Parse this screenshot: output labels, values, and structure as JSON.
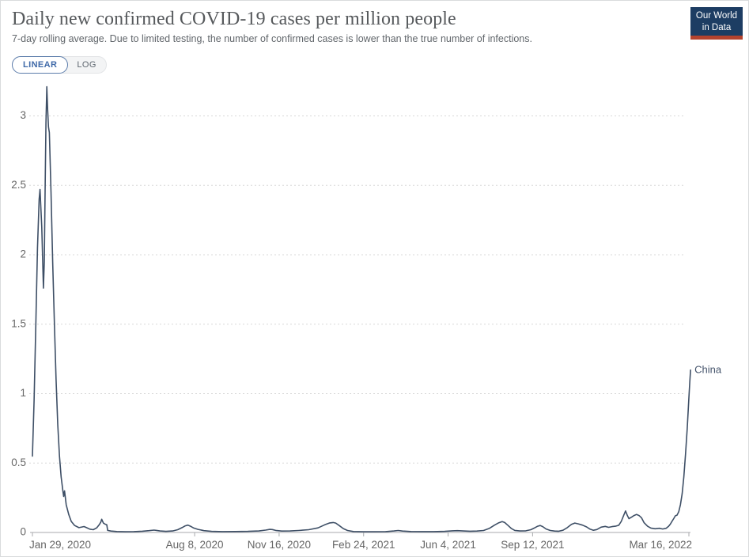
{
  "header": {
    "title": "Daily new confirmed COVID-19 cases per million people",
    "subtitle": "7-day rolling average. Due to limited testing, the number of confirmed cases is lower than the true number of infections."
  },
  "logo": {
    "line1": "Our World",
    "line2": "in Data"
  },
  "controls": {
    "linear_label": "LINEAR",
    "log_label": "LOG"
  },
  "colors": {
    "line": "#3e4f66",
    "entity_label": "#44536b",
    "axis": "#a8aaad",
    "grid": "#d8d8d8",
    "tick_text": "#666666",
    "logo_bg": "#1d3d63",
    "logo_bar": "#b5432e",
    "toggle_active": "#3f69a8"
  },
  "chart_data": {
    "type": "line",
    "title": "Daily new confirmed COVID-19 cases per million people",
    "subtitle": "7-day rolling average. Due to limited testing, the number of confirmed cases is lower than the true number of infections.",
    "xlabel": "",
    "ylabel": "",
    "ylim": [
      0,
      3.3
    ],
    "grid": "horizontal-dashed",
    "legend_position": "end-of-line-label",
    "x_ticks": [
      {
        "label": "Jan 29, 2020",
        "date": "2020-01-29"
      },
      {
        "label": "Aug 8, 2020",
        "date": "2020-08-08"
      },
      {
        "label": "Nov 16, 2020",
        "date": "2020-11-16"
      },
      {
        "label": "Feb 24, 2021",
        "date": "2021-02-24"
      },
      {
        "label": "Jun 4, 2021",
        "date": "2021-06-04"
      },
      {
        "label": "Sep 12, 2021",
        "date": "2021-09-12"
      },
      {
        "label": "Mar 16, 2022",
        "date": "2022-03-16"
      }
    ],
    "y_ticks": [
      {
        "value": 0,
        "label": "0"
      },
      {
        "value": 0.5,
        "label": "0.5"
      },
      {
        "value": 1,
        "label": "1"
      },
      {
        "value": 1.5,
        "label": "1.5"
      },
      {
        "value": 2,
        "label": "2"
      },
      {
        "value": 2.5,
        "label": "2.5"
      },
      {
        "value": 3,
        "label": "3"
      }
    ],
    "series": [
      {
        "name": "China",
        "color": "#3e4f66",
        "points": [
          [
            "2020-01-29",
            0.55
          ],
          [
            "2020-01-31",
            0.95
          ],
          [
            "2020-02-02",
            1.5
          ],
          [
            "2020-02-04",
            2.05
          ],
          [
            "2020-02-06",
            2.4
          ],
          [
            "2020-02-07",
            2.47
          ],
          [
            "2020-02-09",
            2.2
          ],
          [
            "2020-02-11",
            1.76
          ],
          [
            "2020-02-12",
            1.95
          ],
          [
            "2020-02-13",
            2.45
          ],
          [
            "2020-02-14",
            2.95
          ],
          [
            "2020-02-15",
            3.21
          ],
          [
            "2020-02-16",
            3.05
          ],
          [
            "2020-02-17",
            2.92
          ],
          [
            "2020-02-18",
            2.88
          ],
          [
            "2020-02-20",
            2.45
          ],
          [
            "2020-02-22",
            1.95
          ],
          [
            "2020-02-24",
            1.5
          ],
          [
            "2020-02-26",
            1.1
          ],
          [
            "2020-02-28",
            0.78
          ],
          [
            "2020-03-01",
            0.55
          ],
          [
            "2020-03-03",
            0.4
          ],
          [
            "2020-03-05",
            0.3
          ],
          [
            "2020-03-06",
            0.26
          ],
          [
            "2020-03-07",
            0.3
          ],
          [
            "2020-03-09",
            0.2
          ],
          [
            "2020-03-12",
            0.13
          ],
          [
            "2020-03-15",
            0.08
          ],
          [
            "2020-03-19",
            0.05
          ],
          [
            "2020-03-24",
            0.035
          ],
          [
            "2020-03-28",
            0.04
          ],
          [
            "2020-03-30",
            0.043
          ],
          [
            "2020-04-02",
            0.035
          ],
          [
            "2020-04-06",
            0.024
          ],
          [
            "2020-04-10",
            0.02
          ],
          [
            "2020-04-14",
            0.033
          ],
          [
            "2020-04-17",
            0.055
          ],
          [
            "2020-04-19",
            0.075
          ],
          [
            "2020-04-20",
            0.095
          ],
          [
            "2020-04-22",
            0.068
          ],
          [
            "2020-04-24",
            0.06
          ],
          [
            "2020-04-26",
            0.055
          ],
          [
            "2020-04-27",
            0.015
          ],
          [
            "2020-05-01",
            0.01
          ],
          [
            "2020-05-08",
            0.007
          ],
          [
            "2020-05-18",
            0.005
          ],
          [
            "2020-05-28",
            0.006
          ],
          [
            "2020-06-07",
            0.009
          ],
          [
            "2020-06-15",
            0.013
          ],
          [
            "2020-06-21",
            0.017
          ],
          [
            "2020-06-24",
            0.015
          ],
          [
            "2020-06-28",
            0.011
          ],
          [
            "2020-07-05",
            0.008
          ],
          [
            "2020-07-13",
            0.011
          ],
          [
            "2020-07-19",
            0.02
          ],
          [
            "2020-07-24",
            0.035
          ],
          [
            "2020-07-28",
            0.048
          ],
          [
            "2020-07-31",
            0.053
          ],
          [
            "2020-08-03",
            0.045
          ],
          [
            "2020-08-07",
            0.032
          ],
          [
            "2020-08-12",
            0.022
          ],
          [
            "2020-08-19",
            0.013
          ],
          [
            "2020-08-28",
            0.008
          ],
          [
            "2020-09-10",
            0.006
          ],
          [
            "2020-09-25",
            0.007
          ],
          [
            "2020-10-10",
            0.008
          ],
          [
            "2020-10-23",
            0.011
          ],
          [
            "2020-10-31",
            0.017
          ],
          [
            "2020-11-05",
            0.022
          ],
          [
            "2020-11-08",
            0.021
          ],
          [
            "2020-11-12",
            0.015
          ],
          [
            "2020-11-19",
            0.01
          ],
          [
            "2020-11-29",
            0.011
          ],
          [
            "2020-12-09",
            0.014
          ],
          [
            "2020-12-21",
            0.02
          ],
          [
            "2021-01-01",
            0.033
          ],
          [
            "2021-01-09",
            0.055
          ],
          [
            "2021-01-15",
            0.069
          ],
          [
            "2021-01-19",
            0.072
          ],
          [
            "2021-01-22",
            0.068
          ],
          [
            "2021-01-26",
            0.05
          ],
          [
            "2021-01-31",
            0.028
          ],
          [
            "2021-02-05",
            0.014
          ],
          [
            "2021-02-12",
            0.007
          ],
          [
            "2021-02-24",
            0.005
          ],
          [
            "2021-03-09",
            0.005
          ],
          [
            "2021-03-22",
            0.006
          ],
          [
            "2021-04-01",
            0.011
          ],
          [
            "2021-04-06",
            0.014
          ],
          [
            "2021-04-11",
            0.01
          ],
          [
            "2021-04-21",
            0.007
          ],
          [
            "2021-05-03",
            0.006
          ],
          [
            "2021-05-18",
            0.006
          ],
          [
            "2021-05-31",
            0.008
          ],
          [
            "2021-06-09",
            0.012
          ],
          [
            "2021-06-15",
            0.013
          ],
          [
            "2021-06-22",
            0.011
          ],
          [
            "2021-06-30",
            0.009
          ],
          [
            "2021-07-08",
            0.01
          ],
          [
            "2021-07-16",
            0.014
          ],
          [
            "2021-07-23",
            0.03
          ],
          [
            "2021-07-29",
            0.053
          ],
          [
            "2021-08-03",
            0.07
          ],
          [
            "2021-08-07",
            0.078
          ],
          [
            "2021-08-10",
            0.072
          ],
          [
            "2021-08-14",
            0.05
          ],
          [
            "2021-08-18",
            0.028
          ],
          [
            "2021-08-22",
            0.015
          ],
          [
            "2021-08-28",
            0.011
          ],
          [
            "2021-09-04",
            0.012
          ],
          [
            "2021-09-10",
            0.02
          ],
          [
            "2021-09-14",
            0.032
          ],
          [
            "2021-09-18",
            0.045
          ],
          [
            "2021-09-21",
            0.05
          ],
          [
            "2021-09-24",
            0.042
          ],
          [
            "2021-09-28",
            0.025
          ],
          [
            "2021-10-03",
            0.014
          ],
          [
            "2021-10-08",
            0.01
          ],
          [
            "2021-10-13",
            0.009
          ],
          [
            "2021-10-18",
            0.016
          ],
          [
            "2021-10-23",
            0.035
          ],
          [
            "2021-10-28",
            0.058
          ],
          [
            "2021-11-01",
            0.068
          ],
          [
            "2021-11-05",
            0.062
          ],
          [
            "2021-11-10",
            0.053
          ],
          [
            "2021-11-15",
            0.04
          ],
          [
            "2021-11-19",
            0.024
          ],
          [
            "2021-11-23",
            0.016
          ],
          [
            "2021-11-27",
            0.021
          ],
          [
            "2021-12-02",
            0.038
          ],
          [
            "2021-12-07",
            0.044
          ],
          [
            "2021-12-11",
            0.037
          ],
          [
            "2021-12-15",
            0.042
          ],
          [
            "2021-12-19",
            0.045
          ],
          [
            "2021-12-23",
            0.052
          ],
          [
            "2021-12-26",
            0.08
          ],
          [
            "2021-12-29",
            0.125
          ],
          [
            "2021-12-31",
            0.155
          ],
          [
            "2022-01-02",
            0.125
          ],
          [
            "2022-01-04",
            0.1
          ],
          [
            "2022-01-07",
            0.11
          ],
          [
            "2022-01-10",
            0.122
          ],
          [
            "2022-01-13",
            0.13
          ],
          [
            "2022-01-16",
            0.122
          ],
          [
            "2022-01-19",
            0.105
          ],
          [
            "2022-01-22",
            0.07
          ],
          [
            "2022-01-26",
            0.045
          ],
          [
            "2022-01-30",
            0.032
          ],
          [
            "2022-02-04",
            0.027
          ],
          [
            "2022-02-09",
            0.03
          ],
          [
            "2022-02-13",
            0.025
          ],
          [
            "2022-02-17",
            0.03
          ],
          [
            "2022-02-20",
            0.045
          ],
          [
            "2022-02-22",
            0.06
          ],
          [
            "2022-02-24",
            0.08
          ],
          [
            "2022-02-26",
            0.1
          ],
          [
            "2022-02-28",
            0.12
          ],
          [
            "2022-03-02",
            0.125
          ],
          [
            "2022-03-04",
            0.15
          ],
          [
            "2022-03-06",
            0.2
          ],
          [
            "2022-03-08",
            0.28
          ],
          [
            "2022-03-10",
            0.4
          ],
          [
            "2022-03-12",
            0.56
          ],
          [
            "2022-03-14",
            0.75
          ],
          [
            "2022-03-16",
            0.97
          ],
          [
            "2022-03-17",
            1.08
          ],
          [
            "2022-03-18",
            1.17
          ]
        ]
      }
    ]
  }
}
